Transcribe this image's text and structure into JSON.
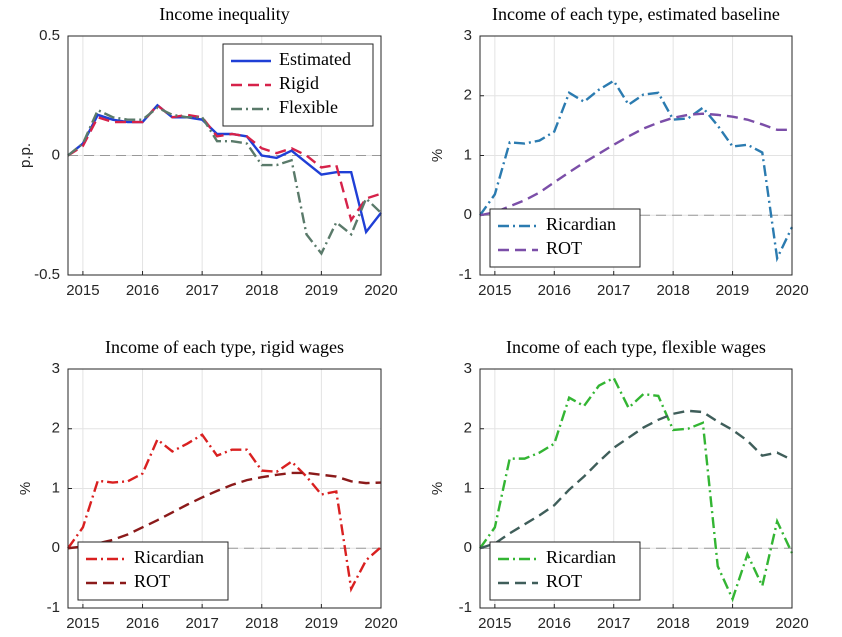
{
  "chart_data": [
    {
      "type": "line",
      "title": "Income inequality",
      "ylabel": "p.p.",
      "x": [
        2014.75,
        2015,
        2015.25,
        2015.5,
        2015.75,
        2016,
        2016.25,
        2016.5,
        2016.75,
        2017,
        2017.25,
        2017.5,
        2017.75,
        2018,
        2018.25,
        2018.5,
        2018.75,
        2019,
        2019.25,
        2019.5,
        2019.75,
        2020
      ],
      "series": [
        {
          "name": "Estimated",
          "color": "#1f3fd6",
          "style": "solid",
          "values": [
            0,
            0.05,
            0.17,
            0.15,
            0.14,
            0.14,
            0.21,
            0.16,
            0.16,
            0.15,
            0.09,
            0.09,
            0.08,
            0,
            -0.01,
            0.02,
            -0.03,
            -0.08,
            -0.07,
            -0.07,
            -0.32,
            -0.24
          ]
        },
        {
          "name": "Rigid",
          "color": "#d6224a",
          "style": "dashed",
          "values": [
            0,
            0.04,
            0.16,
            0.14,
            0.14,
            0.14,
            0.21,
            0.16,
            0.17,
            0.16,
            0.08,
            0.09,
            0.08,
            0.03,
            0.01,
            0.03,
            0,
            -0.05,
            -0.04,
            -0.27,
            -0.18,
            -0.16
          ]
        },
        {
          "name": "Flexible",
          "color": "#5a7a6a",
          "style": "dashdot",
          "values": [
            0,
            0.05,
            0.19,
            0.16,
            0.15,
            0.15,
            0.2,
            0.17,
            0.16,
            0.16,
            0.06,
            0.06,
            0.05,
            -0.04,
            -0.04,
            -0.02,
            -0.33,
            -0.41,
            -0.28,
            -0.33,
            -0.18,
            -0.24
          ]
        }
      ],
      "xlim": [
        2014.75,
        2020
      ],
      "xticks": [
        2015,
        2016,
        2017,
        2018,
        2019,
        2020
      ],
      "ylim": [
        -0.5,
        0.5
      ],
      "yticks": [
        -0.5,
        0,
        0.5
      ],
      "grid": true,
      "refline": 0,
      "legend": "upper right"
    },
    {
      "type": "line",
      "title": "Income of each type, estimated baseline",
      "ylabel": "%",
      "x": [
        2014.75,
        2015,
        2015.25,
        2015.5,
        2015.75,
        2016,
        2016.25,
        2016.5,
        2016.75,
        2017,
        2017.25,
        2017.5,
        2017.75,
        2018,
        2018.25,
        2018.5,
        2018.75,
        2019,
        2019.25,
        2019.5,
        2019.75,
        2020
      ],
      "series": [
        {
          "name": "Ricardian",
          "color": "#2b7bb0",
          "style": "dashdot",
          "values": [
            0,
            0.35,
            1.22,
            1.2,
            1.25,
            1.4,
            2.05,
            1.9,
            2.1,
            2.25,
            1.85,
            2.02,
            2.05,
            1.6,
            1.62,
            1.8,
            1.5,
            1.15,
            1.18,
            1.05,
            -0.72,
            -0.2
          ]
        },
        {
          "name": "ROT",
          "color": "#7b4ea8",
          "style": "dashed",
          "values": [
            0,
            0.05,
            0.15,
            0.25,
            0.38,
            0.55,
            0.72,
            0.88,
            1.03,
            1.18,
            1.32,
            1.45,
            1.55,
            1.63,
            1.68,
            1.7,
            1.68,
            1.65,
            1.6,
            1.52,
            1.43,
            1.43
          ]
        }
      ],
      "xlim": [
        2014.75,
        2020
      ],
      "xticks": [
        2015,
        2016,
        2017,
        2018,
        2019,
        2020
      ],
      "ylim": [
        -1,
        3
      ],
      "yticks": [
        -1,
        0,
        1,
        2,
        3
      ],
      "grid": true,
      "refline": 0,
      "legend": "lower left"
    },
    {
      "type": "line",
      "title": "Income of each type, rigid wages",
      "ylabel": "%",
      "x": [
        2014.75,
        2015,
        2015.25,
        2015.5,
        2015.75,
        2016,
        2016.25,
        2016.5,
        2016.75,
        2017,
        2017.25,
        2017.5,
        2017.75,
        2018,
        2018.25,
        2018.5,
        2018.75,
        2019,
        2019.25,
        2019.5,
        2019.75,
        2020
      ],
      "series": [
        {
          "name": "Ricardian",
          "color": "#d92020",
          "style": "dashdot",
          "values": [
            0,
            0.35,
            1.13,
            1.1,
            1.12,
            1.25,
            1.82,
            1.62,
            1.75,
            1.9,
            1.55,
            1.65,
            1.65,
            1.3,
            1.28,
            1.45,
            1.2,
            0.9,
            0.95,
            -0.68,
            -0.2,
            0.02
          ]
        },
        {
          "name": "ROT",
          "color": "#8b1a1a",
          "style": "dashed",
          "values": [
            0,
            0.03,
            0.08,
            0.14,
            0.23,
            0.35,
            0.47,
            0.6,
            0.73,
            0.85,
            0.96,
            1.06,
            1.14,
            1.19,
            1.23,
            1.26,
            1.26,
            1.23,
            1.2,
            1.12,
            1.09,
            1.1
          ]
        }
      ],
      "xlim": [
        2014.75,
        2020
      ],
      "xticks": [
        2015,
        2016,
        2017,
        2018,
        2019,
        2020
      ],
      "ylim": [
        -1,
        3
      ],
      "yticks": [
        -1,
        0,
        1,
        2,
        3
      ],
      "grid": true,
      "refline": 0,
      "legend": "lower left"
    },
    {
      "type": "line",
      "title": "Income of each type, flexible wages",
      "ylabel": "%",
      "x": [
        2014.75,
        2015,
        2015.25,
        2015.5,
        2015.75,
        2016,
        2016.25,
        2016.5,
        2016.75,
        2017,
        2017.25,
        2017.5,
        2017.75,
        2018,
        2018.25,
        2018.5,
        2018.75,
        2019,
        2019.25,
        2019.5,
        2019.75,
        2020
      ],
      "series": [
        {
          "name": "Ricardian",
          "color": "#33b533",
          "style": "dashdot",
          "values": [
            0,
            0.35,
            1.5,
            1.5,
            1.6,
            1.75,
            2.52,
            2.38,
            2.72,
            2.85,
            2.35,
            2.58,
            2.55,
            1.98,
            2.0,
            2.1,
            -0.3,
            -0.85,
            -0.1,
            -0.63,
            0.45,
            -0.08
          ]
        },
        {
          "name": "ROT",
          "color": "#3f5e5a",
          "style": "dashed",
          "values": [
            0,
            0.08,
            0.25,
            0.4,
            0.55,
            0.72,
            0.98,
            1.2,
            1.45,
            1.68,
            1.85,
            2.02,
            2.15,
            2.25,
            2.3,
            2.28,
            2.12,
            1.98,
            1.8,
            1.55,
            1.6,
            1.48
          ]
        }
      ],
      "xlim": [
        2014.75,
        2020
      ],
      "xticks": [
        2015,
        2016,
        2017,
        2018,
        2019,
        2020
      ],
      "ylim": [
        -1,
        3
      ],
      "yticks": [
        -1,
        0,
        1,
        2,
        3
      ],
      "grid": true,
      "refline": 0,
      "legend": "lower left"
    }
  ]
}
